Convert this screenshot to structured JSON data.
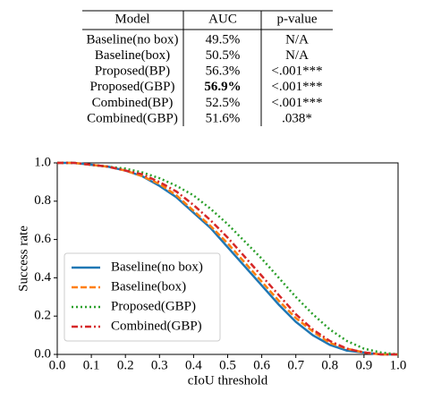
{
  "table": {
    "header": [
      "Model",
      "AUC",
      "p-value"
    ],
    "rows": [
      [
        "Baseline(no box)",
        "49.5%",
        "N/A"
      ],
      [
        "Baseline(box)",
        "50.5%",
        "N/A"
      ],
      [
        "Proposed(BP)",
        "56.3%",
        "<.001***"
      ],
      [
        "Proposed(GBP)",
        "56.9%",
        "<.001***"
      ],
      [
        "Combined(BP)",
        "52.5%",
        "<.001***"
      ],
      [
        "Combined(GBP)",
        "51.6%",
        ".038*"
      ]
    ],
    "bold_cell": [
      3,
      1
    ]
  },
  "chart_data": {
    "type": "line",
    "xlabel": "cIoU threshold",
    "ylabel": "Success rate",
    "x": [
      0,
      0.05,
      0.1,
      0.15,
      0.2,
      0.25,
      0.3,
      0.35,
      0.4,
      0.45,
      0.5,
      0.55,
      0.6,
      0.65,
      0.7,
      0.75,
      0.8,
      0.85,
      0.9,
      0.95,
      1.0
    ],
    "series": [
      {
        "name": "Baseline(no box)",
        "color": "#1f77b4",
        "style": "solid",
        "values": [
          1,
          1,
          0.99,
          0.98,
          0.96,
          0.93,
          0.88,
          0.82,
          0.74,
          0.66,
          0.56,
          0.46,
          0.36,
          0.26,
          0.17,
          0.1,
          0.05,
          0.02,
          0.01,
          0,
          0
        ]
      },
      {
        "name": "Baseline(box)",
        "color": "#ff7f0e",
        "style": "dashed",
        "values": [
          1,
          1,
          0.99,
          0.98,
          0.96,
          0.93,
          0.89,
          0.83,
          0.75,
          0.67,
          0.58,
          0.48,
          0.38,
          0.28,
          0.19,
          0.12,
          0.06,
          0.03,
          0.01,
          0,
          0
        ]
      },
      {
        "name": "Proposed(GBP)",
        "color": "#2ca02c",
        "style": "dotted",
        "values": [
          1,
          1,
          0.99,
          0.98,
          0.97,
          0.95,
          0.92,
          0.88,
          0.83,
          0.76,
          0.68,
          0.59,
          0.5,
          0.4,
          0.3,
          0.21,
          0.13,
          0.07,
          0.03,
          0.01,
          0
        ]
      },
      {
        "name": "Combined(GBP)",
        "color": "#d62728",
        "style": "dashdot",
        "values": [
          1,
          1,
          0.99,
          0.98,
          0.96,
          0.94,
          0.9,
          0.85,
          0.78,
          0.7,
          0.61,
          0.51,
          0.41,
          0.31,
          0.21,
          0.13,
          0.07,
          0.03,
          0.01,
          0,
          0
        ]
      }
    ],
    "xlim": [
      0,
      1
    ],
    "ylim": [
      0,
      1
    ],
    "xticks": [
      {
        "value": 0,
        "label": "0.0"
      },
      {
        "value": 0.1,
        "label": "0.1"
      },
      {
        "value": 0.2,
        "label": "0.2"
      },
      {
        "value": 0.3,
        "label": "0.3"
      },
      {
        "value": 0.4,
        "label": "0.4"
      },
      {
        "value": 0.5,
        "label": "0.5"
      },
      {
        "value": 0.6,
        "label": "0.6"
      },
      {
        "value": 0.7,
        "label": "0.7"
      },
      {
        "value": 0.8,
        "label": "0.8"
      },
      {
        "value": 0.9,
        "label": "0.9"
      },
      {
        "value": 1,
        "label": "1.0"
      }
    ],
    "yticks": [
      {
        "value": 0,
        "label": "0.0"
      },
      {
        "value": 0.2,
        "label": "0.2"
      },
      {
        "value": 0.4,
        "label": "0.4"
      },
      {
        "value": 0.6,
        "label": "0.6"
      },
      {
        "value": 0.8,
        "label": "0.8"
      },
      {
        "value": 1,
        "label": "1.0"
      }
    ],
    "legend": "lower left"
  }
}
